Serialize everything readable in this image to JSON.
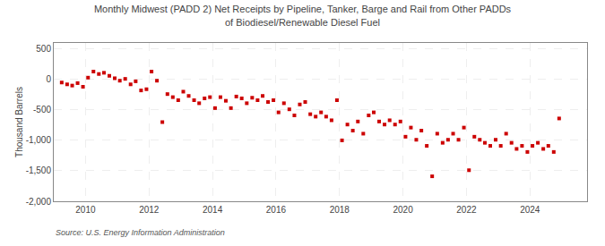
{
  "chart_data": {
    "type": "scatter",
    "title": "Monthly Midwest (PADD 2) Net Receipts by Pipeline, Tanker, Barge and Rail from Other PADDs\nof Biodiesel/Renewable Diesel Fuel",
    "ylabel": "Thousand Barrels",
    "source": "Source: U.S. Energy Information Administration",
    "color": "#cc0000",
    "marker": "square",
    "grid": true,
    "xlim": [
      2009.0,
      2025.8
    ],
    "xticks": [
      2010,
      2012,
      2014,
      2016,
      2018,
      2020,
      2022,
      2024
    ],
    "ylim": [
      -2000,
      600
    ],
    "yticks": [
      {
        "value": -2000,
        "label": "-2,000"
      },
      {
        "value": -1500,
        "label": "-1,500"
      },
      {
        "value": -1000,
        "label": "-1,000"
      },
      -500,
      0,
      500
    ],
    "x": [
      2009.25,
      2009.42,
      2009.58,
      2009.75,
      2009.92,
      2010.08,
      2010.25,
      2010.42,
      2010.58,
      2010.75,
      2010.92,
      2011.08,
      2011.25,
      2011.42,
      2011.58,
      2011.75,
      2011.92,
      2012.08,
      2012.25,
      2012.42,
      2012.58,
      2012.75,
      2012.92,
      2013.08,
      2013.25,
      2013.42,
      2013.58,
      2013.75,
      2013.92,
      2014.08,
      2014.25,
      2014.42,
      2014.58,
      2014.75,
      2014.92,
      2015.08,
      2015.25,
      2015.42,
      2015.58,
      2015.75,
      2015.92,
      2016.08,
      2016.25,
      2016.42,
      2016.58,
      2016.75,
      2016.92,
      2017.08,
      2017.25,
      2017.42,
      2017.58,
      2017.75,
      2017.92,
      2018.08,
      2018.25,
      2018.42,
      2018.58,
      2018.75,
      2018.92,
      2019.08,
      2019.25,
      2019.42,
      2019.58,
      2019.75,
      2019.92,
      2020.08,
      2020.25,
      2020.42,
      2020.58,
      2020.75,
      2020.92,
      2021.08,
      2021.25,
      2021.42,
      2021.58,
      2021.75,
      2021.92,
      2022.08,
      2022.25,
      2022.42,
      2022.58,
      2022.75,
      2022.92,
      2023.08,
      2023.25,
      2023.42,
      2023.58,
      2023.75,
      2023.92,
      2024.08,
      2024.25,
      2024.42,
      2024.58,
      2024.75,
      2024.92
    ],
    "values": [
      -50,
      -80,
      -100,
      -60,
      -120,
      30,
      130,
      90,
      110,
      60,
      20,
      -20,
      10,
      -80,
      -30,
      -180,
      -160,
      130,
      -20,
      -700,
      -240,
      -290,
      -340,
      -200,
      -270,
      -340,
      -390,
      -310,
      -290,
      -470,
      -290,
      -350,
      -470,
      -280,
      -310,
      -390,
      -300,
      -340,
      -270,
      -370,
      -340,
      -540,
      -390,
      -490,
      -590,
      -410,
      -370,
      -570,
      -610,
      -540,
      -610,
      -670,
      -340,
      -1000,
      -740,
      -840,
      -690,
      -890,
      -590,
      -540,
      -690,
      -740,
      -670,
      -740,
      -690,
      -940,
      -790,
      -990,
      -840,
      -1090,
      -1590,
      -890,
      -1040,
      -990,
      -890,
      -990,
      -790,
      -1490,
      -940,
      -990,
      -1040,
      -1090,
      -990,
      -1090,
      -890,
      -1040,
      -1140,
      -1090,
      -1190,
      -1090,
      -1040,
      -1140,
      -1090,
      -1190,
      -640
    ]
  }
}
